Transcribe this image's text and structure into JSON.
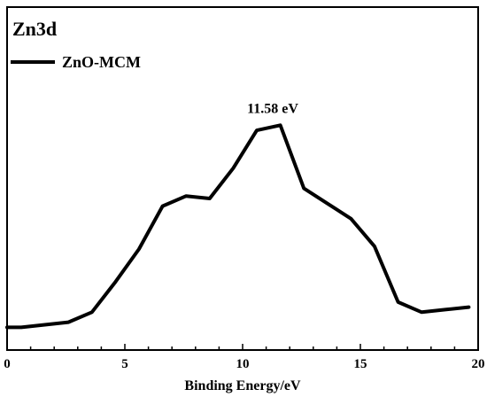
{
  "chart_data": {
    "type": "line",
    "title": "Zn3d",
    "xlabel": "Binding Energy/eV",
    "ylabel": "",
    "xlim": [
      0,
      20
    ],
    "xticks": [
      "0",
      "5",
      "10",
      "15",
      "20"
    ],
    "ylim": [
      0,
      1
    ],
    "y_ticks_shown": false,
    "grid": false,
    "legend": {
      "position": "top-left"
    },
    "series": [
      {
        "name": "ZnO-MCM",
        "color": "#000000",
        "x": [
          0.0,
          0.6,
          2.6,
          3.6,
          4.6,
          5.6,
          6.6,
          7.6,
          8.6,
          9.6,
          10.6,
          11.6,
          12.6,
          13.6,
          14.6,
          15.6,
          16.6,
          17.6,
          18.6,
          19.6
        ],
        "y": [
          0.09,
          0.09,
          0.11,
          0.15,
          0.27,
          0.4,
          0.57,
          0.61,
          0.6,
          0.72,
          0.87,
          0.89,
          0.64,
          0.58,
          0.52,
          0.41,
          0.19,
          0.15,
          0.16,
          0.17
        ]
      }
    ],
    "annotations": [
      {
        "text": "11.58 eV",
        "x": 11.58,
        "y": 0.89
      }
    ]
  }
}
